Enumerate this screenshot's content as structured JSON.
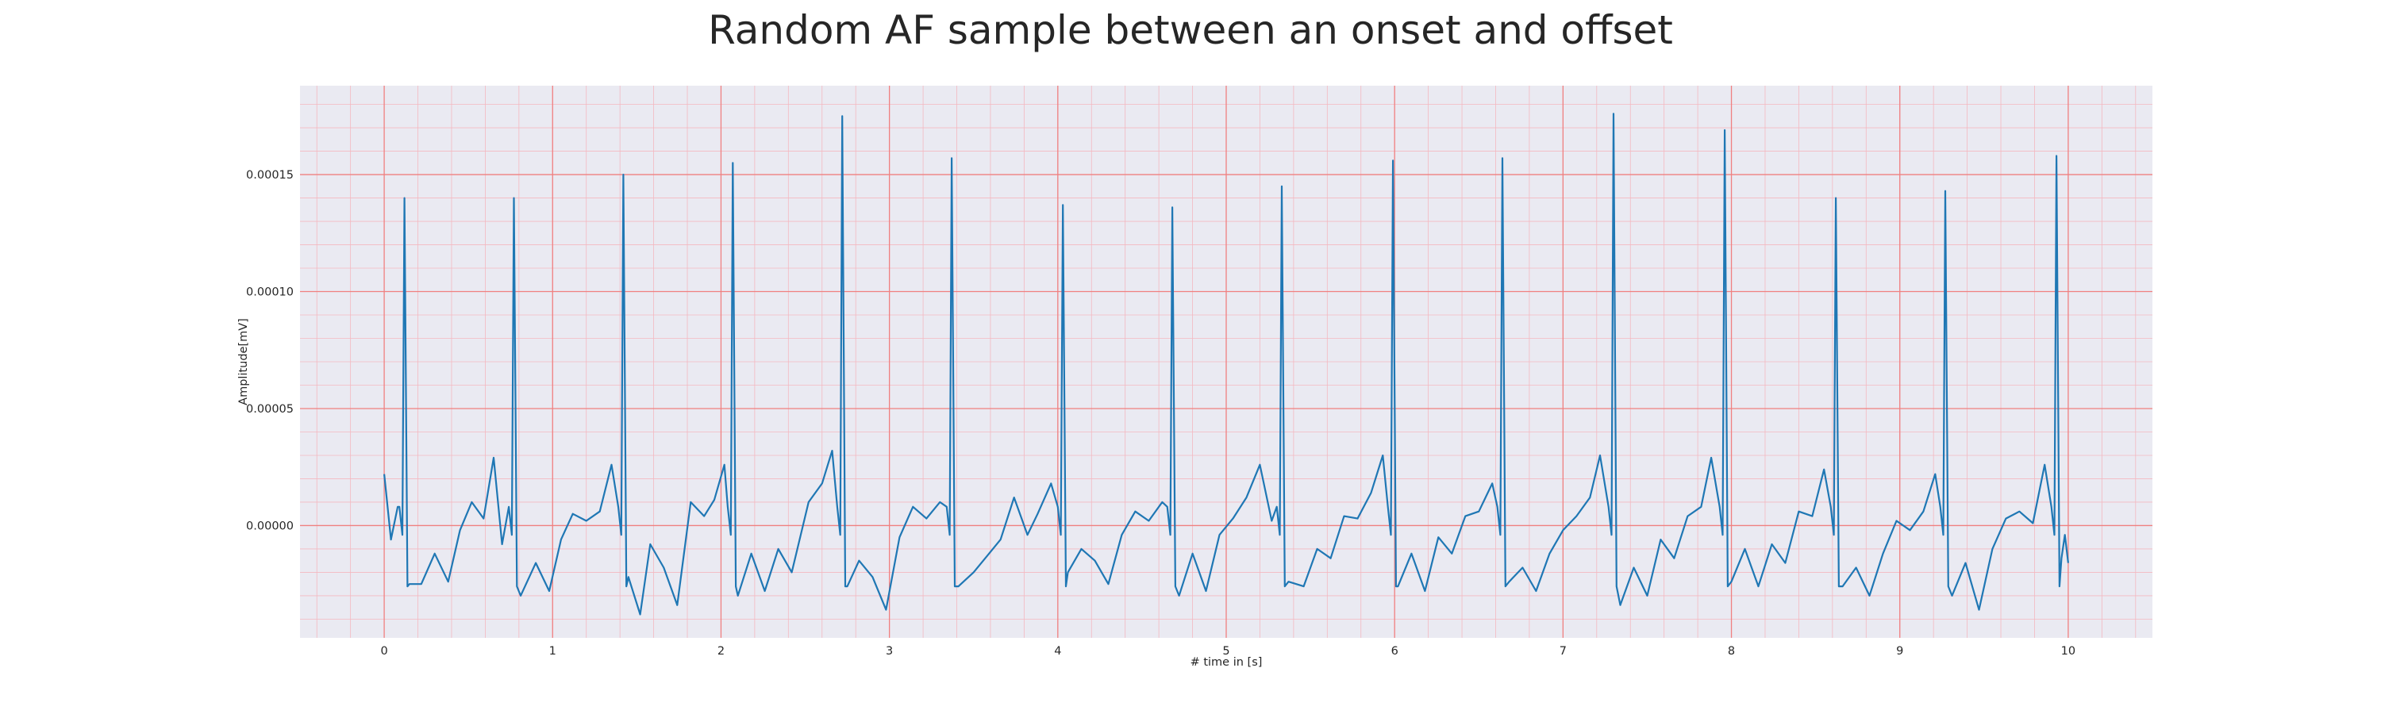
{
  "chart_data": {
    "type": "line",
    "title": "Random AF sample between an onset and offset",
    "xlabel": "# time in [s]",
    "ylabel": "Amplitude[mV]",
    "xlim": [
      -0.5,
      10.5
    ],
    "ylim": [
      -4.8e-05,
      0.000188
    ],
    "x_ticks": [
      0,
      1,
      2,
      3,
      4,
      5,
      6,
      7,
      8,
      9,
      10
    ],
    "y_ticks": [
      "0.00000",
      "0.00005",
      "0.00010",
      "0.00015"
    ],
    "grid": "major and minor",
    "colors": {
      "background": "#eaeaf2",
      "major_grid": "#f08080",
      "minor_grid": "#f4b8c0",
      "line": "#1f77b4"
    },
    "series": [
      {
        "peaks": [
          {
            "x": 0.12,
            "y": 0.00014
          },
          {
            "x": 0.77,
            "y": 0.00014
          },
          {
            "x": 1.42,
            "y": 0.00015
          },
          {
            "x": 2.07,
            "y": 0.000155
          },
          {
            "x": 2.72,
            "y": 0.000175
          },
          {
            "x": 3.37,
            "y": 0.000157
          },
          {
            "x": 4.03,
            "y": 0.000137
          },
          {
            "x": 4.68,
            "y": 0.000136
          },
          {
            "x": 5.33,
            "y": 0.000145
          },
          {
            "x": 5.99,
            "y": 0.000156
          },
          {
            "x": 6.64,
            "y": 0.000157
          },
          {
            "x": 7.3,
            "y": 0.000176
          },
          {
            "x": 7.96,
            "y": 0.000169
          },
          {
            "x": 8.62,
            "y": 0.00014
          },
          {
            "x": 9.27,
            "y": 0.000143
          },
          {
            "x": 9.93,
            "y": 0.000158
          }
        ],
        "baseline": [
          {
            "x": 0.0,
            "y": 2.2e-05
          },
          {
            "x": 0.04,
            "y": -6e-06
          },
          {
            "x": 0.08,
            "y": 8e-06
          },
          {
            "x": 0.15,
            "y": -2.5e-05
          },
          {
            "x": 0.22,
            "y": -2.5e-05
          },
          {
            "x": 0.3,
            "y": -1.2e-05
          },
          {
            "x": 0.38,
            "y": -2.4e-05
          },
          {
            "x": 0.45,
            "y": -2e-06
          },
          {
            "x": 0.52,
            "y": 1e-05
          },
          {
            "x": 0.59,
            "y": 3e-06
          },
          {
            "x": 0.65,
            "y": 2.9e-05
          },
          {
            "x": 0.7,
            "y": -8e-06
          },
          {
            "x": 0.81,
            "y": -3e-05
          },
          {
            "x": 0.9,
            "y": -1.6e-05
          },
          {
            "x": 0.98,
            "y": -2.8e-05
          },
          {
            "x": 1.05,
            "y": -6e-06
          },
          {
            "x": 1.12,
            "y": 5e-06
          },
          {
            "x": 1.2,
            "y": 2e-06
          },
          {
            "x": 1.28,
            "y": 6e-06
          },
          {
            "x": 1.35,
            "y": 2.6e-05
          },
          {
            "x": 1.45,
            "y": -2.2e-05
          },
          {
            "x": 1.52,
            "y": -3.8e-05
          },
          {
            "x": 1.58,
            "y": -8e-06
          },
          {
            "x": 1.66,
            "y": -1.8e-05
          },
          {
            "x": 1.74,
            "y": -3.4e-05
          },
          {
            "x": 1.82,
            "y": 1e-05
          },
          {
            "x": 1.9,
            "y": 4e-06
          },
          {
            "x": 1.96,
            "y": 1.1e-05
          },
          {
            "x": 2.02,
            "y": 2.6e-05
          },
          {
            "x": 2.1,
            "y": -3e-05
          },
          {
            "x": 2.18,
            "y": -1.2e-05
          },
          {
            "x": 2.26,
            "y": -2.8e-05
          },
          {
            "x": 2.34,
            "y": -1e-05
          },
          {
            "x": 2.42,
            "y": -2e-05
          },
          {
            "x": 2.52,
            "y": 1e-05
          },
          {
            "x": 2.6,
            "y": 1.8e-05
          },
          {
            "x": 2.66,
            "y": 3.2e-05
          },
          {
            "x": 2.75,
            "y": -2.6e-05
          },
          {
            "x": 2.82,
            "y": -1.5e-05
          },
          {
            "x": 2.9,
            "y": -2.2e-05
          },
          {
            "x": 2.98,
            "y": -3.6e-05
          },
          {
            "x": 3.06,
            "y": -5e-06
          },
          {
            "x": 3.14,
            "y": 8e-06
          },
          {
            "x": 3.22,
            "y": 3e-06
          },
          {
            "x": 3.3,
            "y": 1e-05
          },
          {
            "x": 3.41,
            "y": -2.6e-05
          },
          {
            "x": 3.5,
            "y": -2e-05
          },
          {
            "x": 3.58,
            "y": -1.3e-05
          },
          {
            "x": 3.66,
            "y": -6e-06
          },
          {
            "x": 3.74,
            "y": 1.2e-05
          },
          {
            "x": 3.82,
            "y": -4e-06
          },
          {
            "x": 3.88,
            "y": 5e-06
          },
          {
            "x": 3.96,
            "y": 1.8e-05
          },
          {
            "x": 4.06,
            "y": -2e-05
          },
          {
            "x": 4.14,
            "y": -1e-05
          },
          {
            "x": 4.22,
            "y": -1.5e-05
          },
          {
            "x": 4.3,
            "y": -2.5e-05
          },
          {
            "x": 4.38,
            "y": -4e-06
          },
          {
            "x": 4.46,
            "y": 6e-06
          },
          {
            "x": 4.54,
            "y": 2e-06
          },
          {
            "x": 4.62,
            "y": 1e-05
          },
          {
            "x": 4.72,
            "y": -3e-05
          },
          {
            "x": 4.8,
            "y": -1.2e-05
          },
          {
            "x": 4.88,
            "y": -2.8e-05
          },
          {
            "x": 4.96,
            "y": -4e-06
          },
          {
            "x": 5.04,
            "y": 3e-06
          },
          {
            "x": 5.12,
            "y": 1.2e-05
          },
          {
            "x": 5.2,
            "y": 2.6e-05
          },
          {
            "x": 5.27,
            "y": 2e-06
          },
          {
            "x": 5.37,
            "y": -2.4e-05
          },
          {
            "x": 5.46,
            "y": -2.6e-05
          },
          {
            "x": 5.54,
            "y": -1e-05
          },
          {
            "x": 5.62,
            "y": -1.4e-05
          },
          {
            "x": 5.7,
            "y": 4e-06
          },
          {
            "x": 5.78,
            "y": 3e-06
          },
          {
            "x": 5.86,
            "y": 1.4e-05
          },
          {
            "x": 5.93,
            "y": 3e-05
          },
          {
            "x": 6.02,
            "y": -2.6e-05
          },
          {
            "x": 6.1,
            "y": -1.2e-05
          },
          {
            "x": 6.18,
            "y": -2.8e-05
          },
          {
            "x": 6.26,
            "y": -5e-06
          },
          {
            "x": 6.34,
            "y": -1.2e-05
          },
          {
            "x": 6.42,
            "y": 4e-06
          },
          {
            "x": 6.5,
            "y": 6e-06
          },
          {
            "x": 6.58,
            "y": 1.8e-05
          },
          {
            "x": 6.68,
            "y": -2.4e-05
          },
          {
            "x": 6.76,
            "y": -1.8e-05
          },
          {
            "x": 6.84,
            "y": -2.8e-05
          },
          {
            "x": 6.92,
            "y": -1.2e-05
          },
          {
            "x": 7.0,
            "y": -2e-06
          },
          {
            "x": 7.08,
            "y": 4e-06
          },
          {
            "x": 7.16,
            "y": 1.2e-05
          },
          {
            "x": 7.22,
            "y": 3e-05
          },
          {
            "x": 7.34,
            "y": -3.4e-05
          },
          {
            "x": 7.42,
            "y": -1.8e-05
          },
          {
            "x": 7.5,
            "y": -3e-05
          },
          {
            "x": 7.58,
            "y": -6e-06
          },
          {
            "x": 7.66,
            "y": -1.4e-05
          },
          {
            "x": 7.74,
            "y": 4e-06
          },
          {
            "x": 7.82,
            "y": 8e-06
          },
          {
            "x": 7.88,
            "y": 2.9e-05
          },
          {
            "x": 8.0,
            "y": -2.4e-05
          },
          {
            "x": 8.08,
            "y": -1e-05
          },
          {
            "x": 8.16,
            "y": -2.6e-05
          },
          {
            "x": 8.24,
            "y": -8e-06
          },
          {
            "x": 8.32,
            "y": -1.6e-05
          },
          {
            "x": 8.4,
            "y": 6e-06
          },
          {
            "x": 8.48,
            "y": 4e-06
          },
          {
            "x": 8.55,
            "y": 2.4e-05
          },
          {
            "x": 8.66,
            "y": -2.6e-05
          },
          {
            "x": 8.74,
            "y": -1.8e-05
          },
          {
            "x": 8.82,
            "y": -3e-05
          },
          {
            "x": 8.9,
            "y": -1.2e-05
          },
          {
            "x": 8.98,
            "y": 2e-06
          },
          {
            "x": 9.06,
            "y": -2e-06
          },
          {
            "x": 9.14,
            "y": 6e-06
          },
          {
            "x": 9.21,
            "y": 2.2e-05
          },
          {
            "x": 9.31,
            "y": -3e-05
          },
          {
            "x": 9.39,
            "y": -1.6e-05
          },
          {
            "x": 9.47,
            "y": -3.6e-05
          },
          {
            "x": 9.55,
            "y": -1e-05
          },
          {
            "x": 9.63,
            "y": 3e-06
          },
          {
            "x": 9.71,
            "y": 6e-06
          },
          {
            "x": 9.79,
            "y": 1e-06
          },
          {
            "x": 9.86,
            "y": 2.6e-05
          },
          {
            "x": 9.96,
            "y": -1.4e-05
          },
          {
            "x": 9.98,
            "y": -4e-06
          },
          {
            "x": 10.0,
            "y": -1.6e-05
          }
        ]
      }
    ]
  }
}
